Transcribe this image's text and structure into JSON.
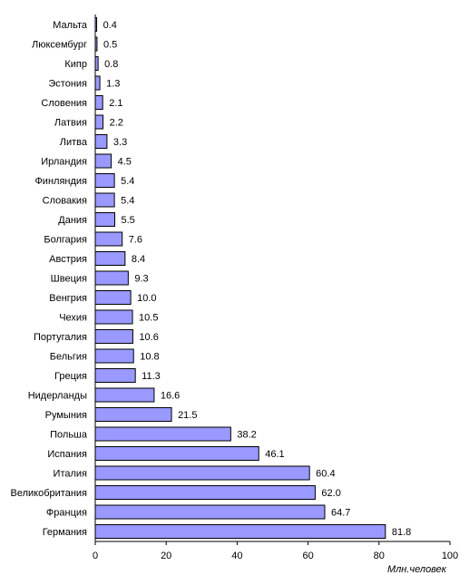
{
  "chart_data": {
    "type": "bar",
    "orientation": "horizontal",
    "categories": [
      "Мальта",
      "Люксембург",
      "Кипр",
      "Эстония",
      "Словения",
      "Латвия",
      "Литва",
      "Ирландия",
      "Финляндия",
      "Словакия",
      "Дания",
      "Болгария",
      "Австрия",
      "Швеция",
      "Венгрия",
      "Чехия",
      "Португалия",
      "Бельгия",
      "Греция",
      "Нидерланды",
      "Румыния",
      "Польша",
      "Испания",
      "Италия",
      "Великобритания",
      "Франция",
      "Германия"
    ],
    "values": [
      0.4,
      0.5,
      0.8,
      1.3,
      2.1,
      2.2,
      3.3,
      4.5,
      5.4,
      5.4,
      5.5,
      7.6,
      8.4,
      9.3,
      10.0,
      10.5,
      10.6,
      10.8,
      11.3,
      16.6,
      21.5,
      38.2,
      46.1,
      60.4,
      62.0,
      64.7,
      81.8
    ],
    "value_labels": [
      "0.4",
      "0.5",
      "0.8",
      "1.3",
      "2.1",
      "2.2",
      "3.3",
      "4.5",
      "5.4",
      "5.4",
      "5.5",
      "7.6",
      "8.4",
      "9.3",
      "10.0",
      "10.5",
      "10.6",
      "10.8",
      "11.3",
      "16.6",
      "21.5",
      "38.2",
      "46.1",
      "60.4",
      "62.0",
      "64.7",
      "81.8"
    ],
    "xlim": [
      0,
      100
    ],
    "x_ticks": [
      "0",
      "20",
      "40",
      "60",
      "80",
      "100"
    ],
    "xlabel": "Млн.человек",
    "title": "",
    "ylabel": "",
    "grid": false,
    "legend": "none",
    "bar_color": "#9999ff",
    "bar_edge_color": "#000000"
  }
}
